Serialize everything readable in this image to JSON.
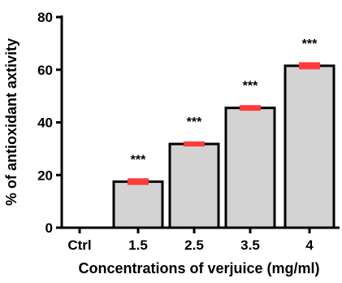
{
  "chart_data": {
    "type": "bar",
    "categories": [
      "Ctrl",
      "1.5",
      "2.5",
      "3.5",
      "4"
    ],
    "values": [
      0,
      17.5,
      31.8,
      45.5,
      61.5
    ],
    "error": [
      0,
      0.8,
      0.5,
      0.6,
      0.9
    ],
    "significance": [
      "",
      "***",
      "***",
      "***",
      "***"
    ],
    "xlabel": "Concentrations of verjuice (mg/ml)",
    "ylabel": "% of antioxidant axtivity",
    "ylim": [
      0,
      80
    ],
    "yticks": [
      0,
      20,
      40,
      60,
      80
    ],
    "grid": false,
    "colors": {
      "bar_fill": "#d3d3d3",
      "bar_stroke": "#000000",
      "error_bar": "#ff3b3b",
      "axis": "#000000"
    }
  }
}
